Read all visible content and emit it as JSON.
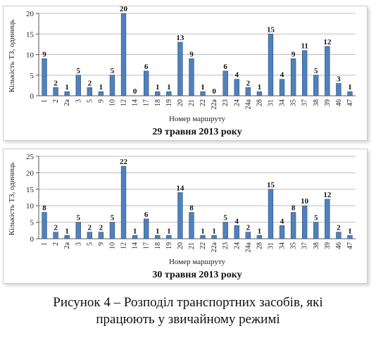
{
  "chart_data": [
    {
      "type": "bar",
      "title": "29 травня 2013 року",
      "xlabel": "Номер маршруту",
      "ylabel": "Кількість ТЗ, одиниць",
      "ylim": [
        0,
        20
      ],
      "yticks": [
        0,
        5,
        10,
        15,
        20
      ],
      "grid": true,
      "color": "#4f81bd",
      "categories": [
        "1",
        "2",
        "2a",
        "3",
        "5",
        "9",
        "10",
        "12",
        "14",
        "17",
        "18",
        "19",
        "20",
        "21",
        "22",
        "22a",
        "23",
        "24",
        "24a",
        "28",
        "31",
        "34",
        "35",
        "37",
        "38",
        "39",
        "46",
        "47"
      ],
      "values": [
        9,
        2,
        1,
        5,
        2,
        1,
        5,
        20,
        0,
        6,
        1,
        1,
        13,
        9,
        1,
        0,
        6,
        4,
        2,
        1,
        15,
        4,
        9,
        11,
        5,
        12,
        3,
        1
      ]
    },
    {
      "type": "bar",
      "title": "30 травня 2013 року",
      "xlabel": "Номер маршруту",
      "ylabel": "Кількість ТЗ, одиниць",
      "ylim": [
        0,
        25
      ],
      "yticks": [
        0,
        5,
        10,
        15,
        20,
        25
      ],
      "grid": true,
      "color": "#4f81bd",
      "categories": [
        "1",
        "2",
        "2a",
        "3",
        "5",
        "9",
        "10",
        "12",
        "14",
        "17",
        "18",
        "19",
        "20",
        "21",
        "22",
        "22a",
        "23",
        "24",
        "24a",
        "28",
        "31",
        "34",
        "35",
        "37",
        "38",
        "39",
        "46",
        "47"
      ],
      "values": [
        8,
        2,
        1,
        5,
        2,
        2,
        5,
        22,
        1,
        6,
        1,
        1,
        14,
        8,
        1,
        1,
        5,
        4,
        2,
        1,
        15,
        4,
        8,
        10,
        5,
        12,
        2,
        1
      ]
    }
  ],
  "caption": {
    "line1": "Рисунок 4 – Розподіл транспортних засобів, які",
    "line2": "працюють у звичайному режимі"
  }
}
